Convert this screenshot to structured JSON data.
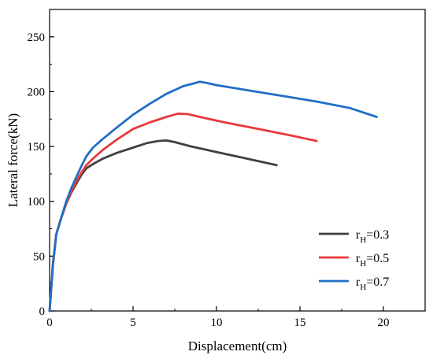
{
  "chart_data": {
    "type": "line",
    "xlabel": "Displacement(cm)",
    "ylabel": "Lateral force(kN)",
    "xlim": [
      0,
      22.5
    ],
    "ylim": [
      0,
      275
    ],
    "x_ticks": [
      0,
      5,
      10,
      15,
      20
    ],
    "y_ticks": [
      0,
      50,
      100,
      150,
      200,
      250
    ],
    "x_tick_labels": [
      "0",
      "5",
      "10",
      "15",
      "20"
    ],
    "y_tick_labels": [
      "0",
      "50",
      "100",
      "150",
      "200",
      "250"
    ],
    "grid": false,
    "legend_position": "bottom-right",
    "series": [
      {
        "name_main": "r",
        "name_sub": "H",
        "name_rest": "=0.3",
        "color": "#404040",
        "points": [
          [
            0,
            0
          ],
          [
            0.2,
            42
          ],
          [
            0.4,
            70
          ],
          [
            0.7,
            85
          ],
          [
            1.0,
            98
          ],
          [
            1.3,
            108
          ],
          [
            1.6,
            116
          ],
          [
            1.9,
            124
          ],
          [
            2.2,
            130
          ],
          [
            2.6,
            134
          ],
          [
            3.2,
            139
          ],
          [
            4.0,
            144
          ],
          [
            5.0,
            149
          ],
          [
            5.8,
            153
          ],
          [
            6.5,
            155
          ],
          [
            7.0,
            155.5
          ],
          [
            7.5,
            154
          ],
          [
            8.5,
            150
          ],
          [
            10.0,
            145
          ],
          [
            11.5,
            140
          ],
          [
            13.6,
            133
          ]
        ]
      },
      {
        "name_main": "r",
        "name_sub": "H",
        "name_rest": "=0.5",
        "color": "#e8393b",
        "points": [
          [
            0,
            0
          ],
          [
            0.2,
            42
          ],
          [
            0.4,
            70
          ],
          [
            0.7,
            85
          ],
          [
            1.0,
            98
          ],
          [
            1.3,
            109
          ],
          [
            1.6,
            118
          ],
          [
            1.9,
            126
          ],
          [
            2.2,
            133
          ],
          [
            2.6,
            139
          ],
          [
            3.2,
            147
          ],
          [
            4.0,
            156
          ],
          [
            5.0,
            166
          ],
          [
            6.0,
            172
          ],
          [
            7.0,
            177
          ],
          [
            7.7,
            180
          ],
          [
            8.3,
            179.5
          ],
          [
            9.0,
            177
          ],
          [
            10.5,
            172
          ],
          [
            12.5,
            166
          ],
          [
            14.5,
            160
          ],
          [
            16.0,
            155
          ]
        ]
      },
      {
        "name_main": "r",
        "name_sub": "H",
        "name_rest": "=0.7",
        "color": "#1f6fc5",
        "points": [
          [
            0,
            0
          ],
          [
            0.2,
            42
          ],
          [
            0.4,
            70
          ],
          [
            0.7,
            85
          ],
          [
            1.0,
            100
          ],
          [
            1.3,
            112
          ],
          [
            1.6,
            122
          ],
          [
            1.9,
            132
          ],
          [
            2.2,
            141
          ],
          [
            2.6,
            149
          ],
          [
            3.2,
            157
          ],
          [
            4.0,
            167
          ],
          [
            5.0,
            179
          ],
          [
            6.0,
            189
          ],
          [
            7.0,
            198
          ],
          [
            8.0,
            205
          ],
          [
            9.0,
            209
          ],
          [
            9.4,
            208
          ],
          [
            10.0,
            206
          ],
          [
            12.0,
            201
          ],
          [
            14.0,
            196
          ],
          [
            16.0,
            191
          ],
          [
            18.0,
            185
          ],
          [
            19.6,
            177
          ]
        ]
      }
    ]
  }
}
